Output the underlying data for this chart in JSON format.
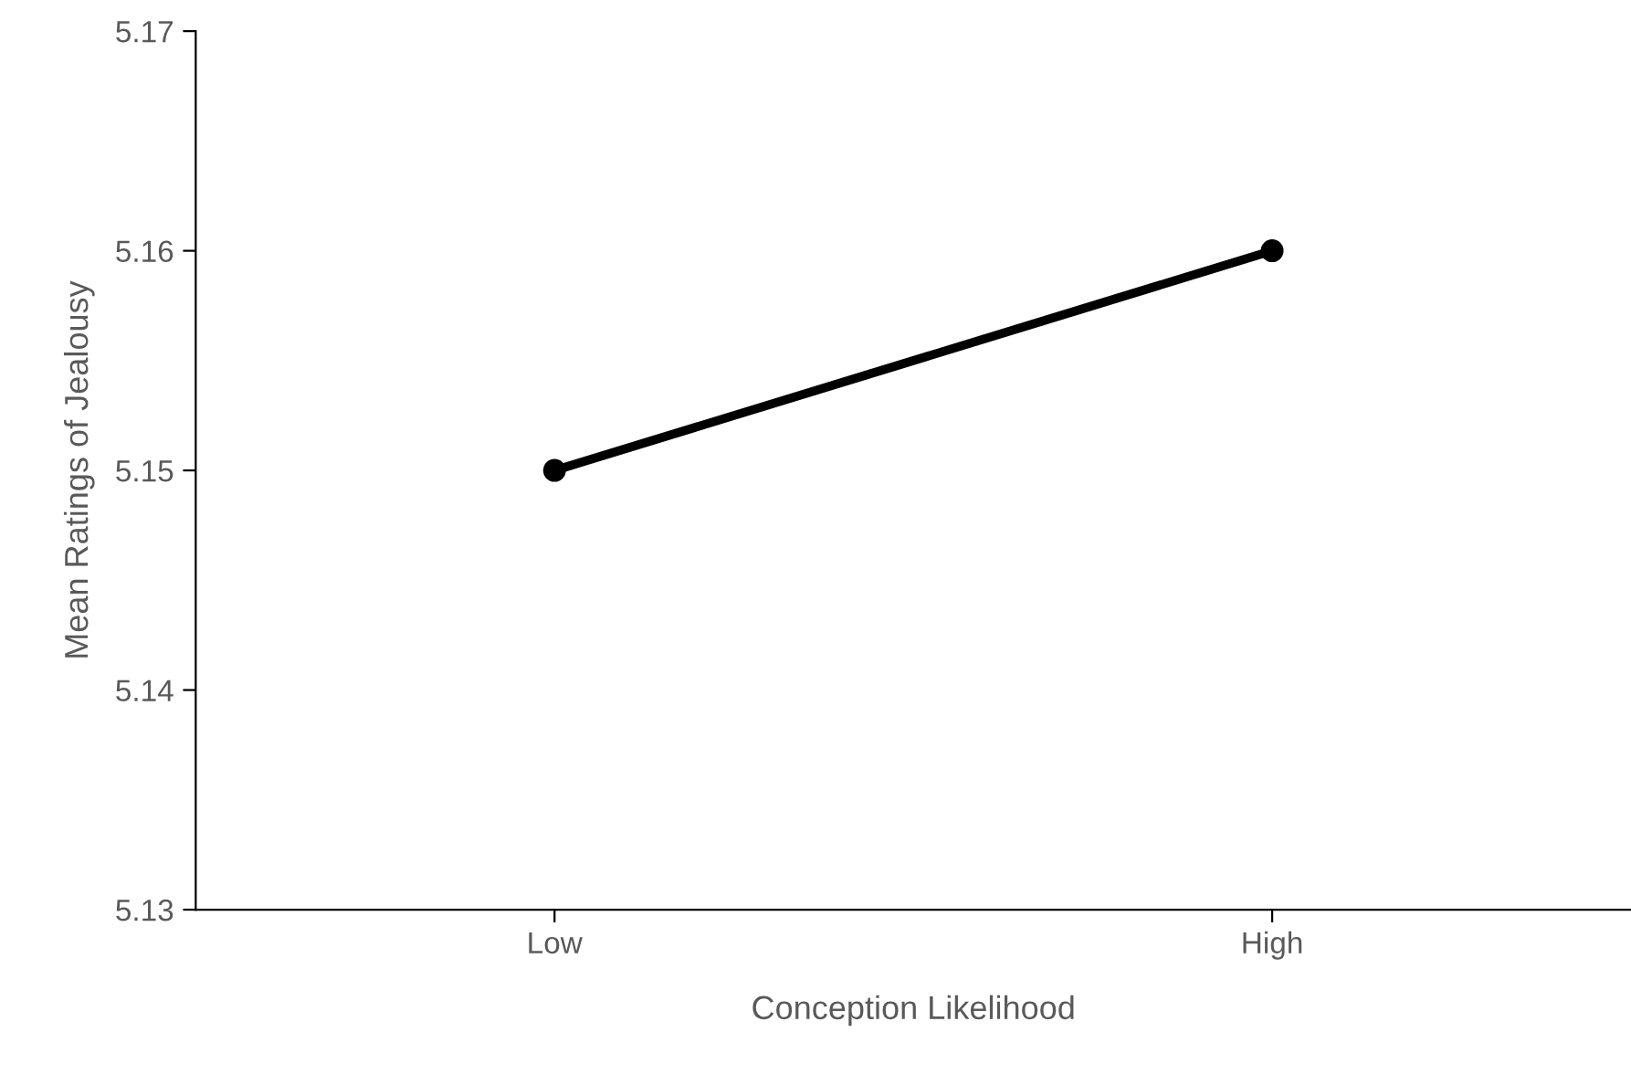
{
  "chart_data": {
    "type": "line",
    "xlabel": "Conception Likelihood",
    "ylabel": "Mean Ratings of Jealousy",
    "categories": [
      "Low",
      "High"
    ],
    "series": [
      {
        "color": "#000000",
        "values": [
          5.15,
          5.16
        ]
      }
    ],
    "ylim": [
      5.13,
      5.17
    ],
    "yticks": [
      {
        "value": 5.13,
        "label": "5.13"
      },
      {
        "value": 5.14,
        "label": "5.14"
      },
      {
        "value": 5.15,
        "label": "5.15"
      },
      {
        "value": 5.16,
        "label": "5.16"
      },
      {
        "value": 5.17,
        "label": "5.17"
      }
    ],
    "grid": false,
    "marker": "circle",
    "line_style": "solid"
  }
}
